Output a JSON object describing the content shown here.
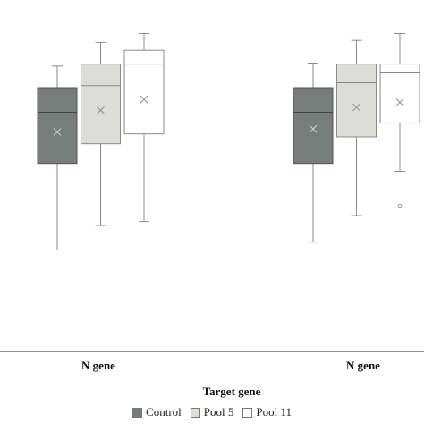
{
  "chart_data": {
    "type": "box",
    "categories": [
      "N gene",
      "N gene"
    ],
    "xlabel": "Target gene",
    "ylabel": "",
    "legend_position": "bottom",
    "series": [
      {
        "name": "Control",
        "color": "#777d7b",
        "boxes": [
          {
            "min": 11.5,
            "q1": 20.3,
            "median": 25.5,
            "q3": 28.0,
            "max": 30.2,
            "mean": 23.5
          },
          {
            "min": 12.3,
            "q1": 20.3,
            "median": 25.5,
            "q3": 28.0,
            "max": 30.5,
            "mean": 23.8
          }
        ]
      },
      {
        "name": "Pool 5",
        "color": "#dcdcd9",
        "boxes": [
          {
            "min": 14.0,
            "q1": 22.3,
            "median": 28.2,
            "q3": 30.4,
            "max": 32.6,
            "mean": 25.7
          },
          {
            "min": 15.0,
            "q1": 23.0,
            "median": 28.5,
            "q3": 30.4,
            "max": 32.8,
            "mean": 26.0
          }
        ]
      },
      {
        "name": "Pool 11",
        "color": "#ffffff",
        "boxes": [
          {
            "min": 14.4,
            "q1": 23.3,
            "median": 30.4,
            "q3": 31.8,
            "max": 33.5,
            "mean": 26.8
          },
          {
            "min": 19.5,
            "q1": 24.4,
            "median": 29.5,
            "q3": 30.4,
            "max": 33.5,
            "mean": 26.5,
            "outliers": [
              16.0
            ]
          }
        ]
      }
    ]
  }
}
